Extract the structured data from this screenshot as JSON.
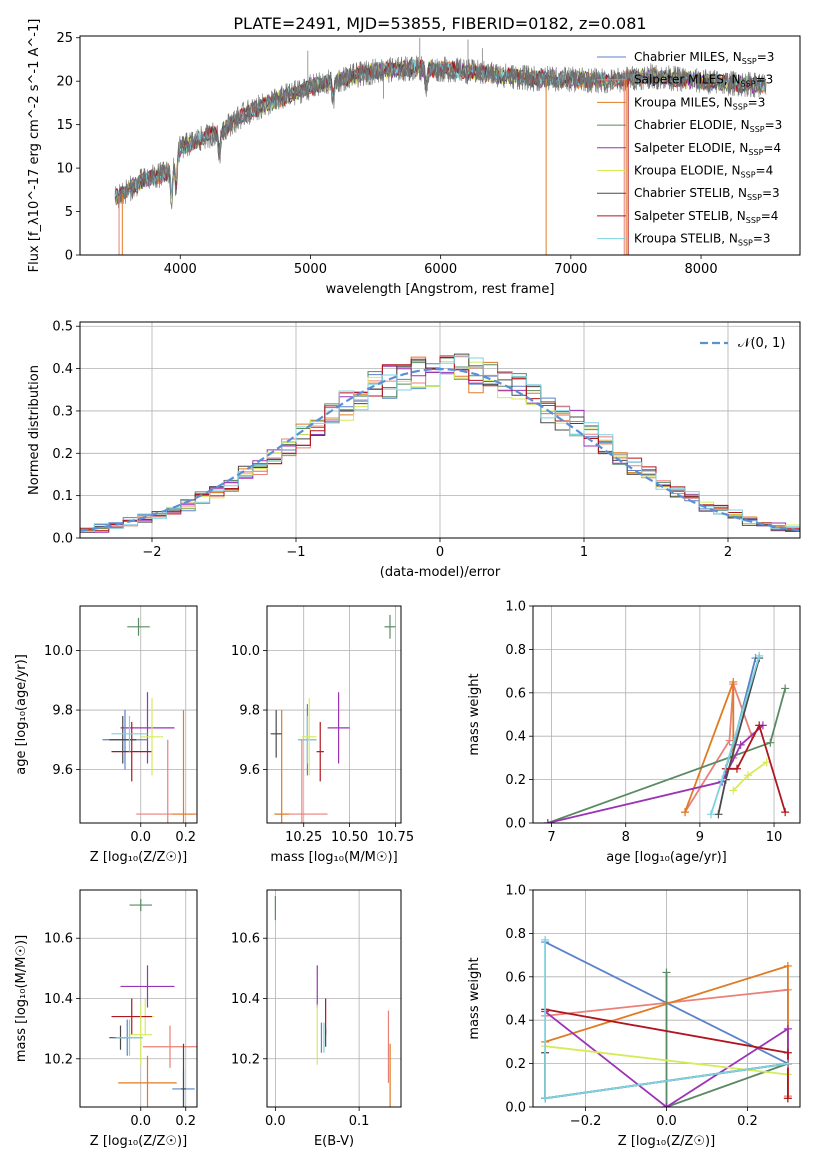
{
  "figure": {
    "title": "PLATE=2491, MJD=53855, FIBERID=0182, z=0.081"
  },
  "colors": {
    "chabrier_miles": "#5b82c7",
    "salpeter_miles": "#e9807a",
    "kroupa_miles": "#e07b24",
    "chabrier_elodie": "#5a8a63",
    "salpeter_elodie": "#9b33b5",
    "kroupa_elodie": "#d7ea5a",
    "chabrier_stelib": "#4a4a4a",
    "salpeter_stelib": "#b0161f",
    "kroupa_stelib": "#7dd3e0",
    "grid": "#b0b0b0",
    "gaussian": "#5b8fd6"
  },
  "chart_data": [
    {
      "type": "line",
      "id": "spectrum",
      "xlabel": "wavelength [Angstrom, rest frame]",
      "ylabel": "Flux [f_λ10^-17 erg cm^-2 s^-1 A^-1]",
      "xlim": [
        3230,
        8760
      ],
      "ylim": [
        0,
        25.2
      ],
      "xticks": [
        4000,
        5000,
        6000,
        7000,
        8000
      ],
      "yticks": [
        0,
        5,
        10,
        15,
        20,
        25
      ],
      "grid": false,
      "legend_position": "right",
      "legend": [
        {
          "label": "Chabrier MILES, N",
          "sub": "SSP",
          "tail": "=3",
          "color_key": "chabrier_miles"
        },
        {
          "label": "Salpeter MILES, N",
          "sub": "SSP",
          "tail": "=3",
          "color_key": "salpeter_miles"
        },
        {
          "label": "Kroupa MILES, N",
          "sub": "SSP",
          "tail": "=3",
          "color_key": "kroupa_miles"
        },
        {
          "label": "Chabrier ELODIE, N",
          "sub": "SSP",
          "tail": "=3",
          "color_key": "chabrier_elodie"
        },
        {
          "label": "Salpeter ELODIE, N",
          "sub": "SSP",
          "tail": "=4",
          "color_key": "salpeter_elodie"
        },
        {
          "label": "Kroupa ELODIE, N",
          "sub": "SSP",
          "tail": "=4",
          "color_key": "kroupa_elodie"
        },
        {
          "label": "Chabrier STELIB, N",
          "sub": "SSP",
          "tail": "=3",
          "color_key": "chabrier_stelib"
        },
        {
          "label": "Salpeter STELIB, N",
          "sub": "SSP",
          "tail": "=4",
          "color_key": "salpeter_stelib"
        },
        {
          "label": "Kroupa STELIB, N",
          "sub": "SSP",
          "tail": "=3",
          "color_key": "kroupa_stelib"
        }
      ],
      "continuum": {
        "x": [
          3500,
          3700,
          3900,
          4000,
          4100,
          4300,
          4500,
          4800,
          5000,
          5200,
          5500,
          5800,
          6100,
          6400,
          6700,
          7000,
          7300,
          7600,
          8000,
          8200,
          8500
        ],
        "y": [
          6.5,
          8.5,
          9.5,
          12.3,
          13.0,
          14.2,
          16.3,
          18.2,
          19.3,
          20.1,
          21.2,
          21.5,
          21.3,
          20.8,
          20.3,
          20.2,
          20.0,
          20.6,
          20.0,
          19.8,
          19.5
        ]
      },
      "model_range": [
        3500,
        8500
      ],
      "dips": [
        {
          "x": 3934,
          "depth": 4.0
        },
        {
          "x": 3968,
          "depth": 3.5
        },
        {
          "x": 4300,
          "depth": 2.5
        },
        {
          "x": 5175,
          "depth": 2.0
        },
        {
          "x": 5890,
          "depth": 2.0
        }
      ],
      "spikes": [
        {
          "x": 5840,
          "y": 25.0
        },
        {
          "x": 6210,
          "y": 24.8
        },
        {
          "x": 4980,
          "y": 23.5
        },
        {
          "x": 6320,
          "y": 23.8
        },
        {
          "x": 5560,
          "y": 18.0
        }
      ],
      "drop_lines": [
        {
          "x": 3530,
          "color_key": "salpeter_miles"
        },
        {
          "x": 3555,
          "color_key": "kroupa_miles"
        },
        {
          "x": 6810,
          "color_key": "kroupa_miles"
        },
        {
          "x": 7410,
          "color_key": "salpeter_miles"
        },
        {
          "x": 7425,
          "color_key": "kroupa_miles"
        },
        {
          "x": 7440,
          "color_key": "salpeter_stelib"
        }
      ]
    },
    {
      "type": "line",
      "id": "residual_hist",
      "xlabel": "(data-model)/error",
      "ylabel": "Normed distribution",
      "xlim": [
        -2.5,
        2.5
      ],
      "ylim": [
        0,
        0.51
      ],
      "xticks": [
        -2,
        -1,
        0,
        1,
        2
      ],
      "yticks": [
        0.0,
        0.1,
        0.2,
        0.3,
        0.4,
        0.5
      ],
      "grid": true,
      "legend_position": "upper right",
      "legend": [
        {
          "label": "𝒩(0, 1)",
          "color_key": "gaussian"
        }
      ],
      "bin_width": 0.1,
      "bin_start": -2.5,
      "series_order": [
        "chabrier_miles",
        "salpeter_miles",
        "kroupa_miles",
        "chabrier_elodie",
        "salpeter_elodie",
        "kroupa_elodie",
        "chabrier_stelib",
        "salpeter_stelib",
        "kroupa_stelib"
      ]
    },
    {
      "type": "scatter",
      "id": "age_vs_Z",
      "xlabel": "Z [log₁₀(Z/Z☉)]",
      "ylabel": "age  [log₁₀(age/yr)]",
      "xlim": [
        -0.27,
        0.25
      ],
      "ylim": [
        9.42,
        10.15
      ],
      "xticks": [
        0.0,
        0.2
      ],
      "xticklabels": [
        "0.0",
        "0.2"
      ],
      "yticks": [
        9.6,
        9.8,
        10.0
      ],
      "yticklabels": [
        "9.6",
        "9.8",
        "10.0"
      ],
      "grid": true,
      "points": [
        {
          "x": -0.01,
          "y": 10.08,
          "xerr": 0.05,
          "yerr": 0.03,
          "color_key": "chabrier_elodie"
        },
        {
          "x": 0.03,
          "y": 9.74,
          "xerr": 0.12,
          "yerr": 0.12,
          "color_key": "salpeter_elodie"
        },
        {
          "x": -0.07,
          "y": 9.7,
          "xerr": 0.1,
          "yerr": 0.1,
          "color_key": "chabrier_miles"
        },
        {
          "x": -0.04,
          "y": 9.66,
          "xerr": 0.09,
          "yerr": 0.1,
          "color_key": "salpeter_stelib"
        },
        {
          "x": -0.08,
          "y": 9.7,
          "xerr": 0.06,
          "yerr": 0.08,
          "color_key": "chabrier_stelib"
        },
        {
          "x": -0.05,
          "y": 9.72,
          "xerr": 0.08,
          "yerr": 0.06,
          "color_key": "kroupa_stelib"
        },
        {
          "x": 0.05,
          "y": 9.71,
          "xerr": 0.05,
          "yerr": 0.13,
          "color_key": "kroupa_elodie"
        },
        {
          "x": 0.12,
          "y": 9.45,
          "xerr": 0.14,
          "yerr": 0.25,
          "color_key": "salpeter_miles"
        },
        {
          "x": 0.19,
          "y": 9.45,
          "xerr": 0.05,
          "yerr": 0.35,
          "color_key": "kroupa_miles"
        }
      ]
    },
    {
      "type": "scatter",
      "id": "age_vs_mass",
      "xlabel": "mass [log₁₀(M/M☉)]",
      "ylabel": "",
      "xlim": [
        10.05,
        10.78
      ],
      "ylim": [
        9.42,
        10.15
      ],
      "xticks": [
        10.25,
        10.5,
        10.75
      ],
      "xticklabels": [
        "10.25",
        "10.50",
        "10.75"
      ],
      "yticks": [
        9.6,
        9.8,
        10.0
      ],
      "yticklabels": [
        "9.6",
        "9.8",
        "10.0"
      ],
      "grid": true,
      "points": [
        {
          "x": 10.72,
          "y": 10.08,
          "xerr": 0.03,
          "yerr": 0.04,
          "color_key": "chabrier_elodie"
        },
        {
          "x": 10.44,
          "y": 9.74,
          "xerr": 0.06,
          "yerr": 0.12,
          "color_key": "salpeter_elodie"
        },
        {
          "x": 10.27,
          "y": 9.7,
          "xerr": 0.05,
          "yerr": 0.12,
          "color_key": "chabrier_miles"
        },
        {
          "x": 10.34,
          "y": 9.66,
          "xerr": 0.02,
          "yerr": 0.1,
          "color_key": "salpeter_stelib"
        },
        {
          "x": 10.27,
          "y": 9.7,
          "xerr": 0.05,
          "yerr": 0.08,
          "color_key": "kroupa_stelib"
        },
        {
          "x": 10.28,
          "y": 9.71,
          "xerr": 0.04,
          "yerr": 0.13,
          "color_key": "kroupa_elodie"
        },
        {
          "x": 10.24,
          "y": 9.45,
          "xerr": 0.14,
          "yerr": 0.25,
          "color_key": "salpeter_miles"
        },
        {
          "x": 10.13,
          "y": 9.45,
          "xerr": 0.04,
          "yerr": 0.35,
          "color_key": "kroupa_miles"
        },
        {
          "x": 10.1,
          "y": 9.72,
          "xerr": 0.03,
          "yerr": 0.08,
          "color_key": "chabrier_stelib"
        }
      ]
    },
    {
      "type": "line",
      "id": "massweight_vs_age",
      "xlabel": "age  [log₁₀(age/yr)]",
      "ylabel": "mass weight",
      "xlim": [
        6.75,
        10.35
      ],
      "ylim": [
        0,
        1
      ],
      "xticks": [
        7,
        8,
        9,
        10
      ],
      "yticks": [
        0.0,
        0.2,
        0.4,
        0.6,
        0.8,
        1.0
      ],
      "grid": true,
      "series": [
        {
          "color_key": "chabrier_miles",
          "x": [
            9.3,
            9.45,
            9.75
          ],
          "y": [
            0.2,
            0.36,
            0.76
          ]
        },
        {
          "color_key": "salpeter_miles",
          "x": [
            8.8,
            9.4,
            9.45,
            9.7
          ],
          "y": [
            0.05,
            0.38,
            0.64,
            0.4
          ]
        },
        {
          "color_key": "kroupa_miles",
          "x": [
            8.8,
            9.45,
            9.45
          ],
          "y": [
            0.05,
            0.65,
            0.3
          ]
        },
        {
          "color_key": "chabrier_elodie",
          "x": [
            6.95,
            9.95,
            10.15
          ],
          "y": [
            0.0,
            0.37,
            0.62
          ]
        },
        {
          "color_key": "salpeter_elodie",
          "x": [
            6.95,
            9.3,
            9.55,
            9.85
          ],
          "y": [
            0.0,
            0.19,
            0.36,
            0.45
          ]
        },
        {
          "color_key": "kroupa_elodie",
          "x": [
            9.45,
            9.65,
            9.9
          ],
          "y": [
            0.15,
            0.22,
            0.28
          ]
        },
        {
          "color_key": "chabrier_stelib",
          "x": [
            9.25,
            9.35,
            9.8
          ],
          "y": [
            0.04,
            0.2,
            0.76
          ]
        },
        {
          "color_key": "salpeter_stelib",
          "x": [
            9.35,
            9.5,
            9.8,
            10.15
          ],
          "y": [
            0.25,
            0.25,
            0.45,
            0.05
          ]
        },
        {
          "color_key": "kroupa_stelib",
          "x": [
            9.15,
            9.3,
            9.8
          ],
          "y": [
            0.04,
            0.2,
            0.77
          ]
        }
      ]
    },
    {
      "type": "scatter",
      "id": "mass_vs_Z",
      "xlabel": "Z [log₁₀(Z/Z☉)]",
      "ylabel": "mass [log₁₀(M/M☉)]",
      "xlim": [
        -0.27,
        0.25
      ],
      "ylim": [
        10.04,
        10.76
      ],
      "xticks": [
        0.0,
        0.2
      ],
      "xticklabels": [
        "0.0",
        "0.2"
      ],
      "yticks": [
        10.2,
        10.4,
        10.6
      ],
      "yticklabels": [
        "10.2",
        "10.4",
        "10.6"
      ],
      "grid": true,
      "points": [
        {
          "x": 0.0,
          "y": 10.71,
          "xerr": 0.05,
          "yerr": 0.02,
          "color_key": "chabrier_elodie"
        },
        {
          "x": 0.03,
          "y": 10.44,
          "xerr": 0.12,
          "yerr": 0.07,
          "color_key": "salpeter_elodie"
        },
        {
          "x": 0.02,
          "y": 10.34,
          "xerr": 0.04,
          "yerr": 0.06,
          "color_key": "kroupa_elodie"
        },
        {
          "x": -0.04,
          "y": 10.34,
          "xerr": 0.09,
          "yerr": 0.06,
          "color_key": "salpeter_stelib"
        },
        {
          "x": 0.0,
          "y": 10.28,
          "xerr": 0.05,
          "yerr": 0.1,
          "color_key": "kroupa_elodie"
        },
        {
          "x": -0.09,
          "y": 10.27,
          "xerr": 0.05,
          "yerr": 0.04,
          "color_key": "chabrier_stelib"
        },
        {
          "x": -0.06,
          "y": 10.27,
          "xerr": 0.06,
          "yerr": 0.06,
          "color_key": "chabrier_miles"
        },
        {
          "x": -0.05,
          "y": 10.27,
          "xerr": 0.06,
          "yerr": 0.06,
          "color_key": "kroupa_stelib"
        },
        {
          "x": 0.13,
          "y": 10.24,
          "xerr": 0.12,
          "yerr": 0.07,
          "color_key": "salpeter_miles"
        },
        {
          "x": 0.03,
          "y": 10.12,
          "xerr": 0.13,
          "yerr": 0.09,
          "color_key": "kroupa_miles"
        },
        {
          "x": 0.19,
          "y": 10.1,
          "xerr": 0.05,
          "yerr": 0.06,
          "color_key": "chabrier_miles"
        },
        {
          "x": 0.19,
          "y": 10.1,
          "xerr": 0.01,
          "yerr": 0.15,
          "color_key": "chabrier_stelib"
        }
      ]
    },
    {
      "type": "scatter",
      "id": "mass_vs_ebv",
      "xlabel": "E(B-V)",
      "ylabel": "",
      "xlim": [
        -0.01,
        0.15
      ],
      "ylim": [
        10.04,
        10.76
      ],
      "xticks": [
        0.0,
        0.1
      ],
      "xticklabels": [
        "0.0",
        "0.1"
      ],
      "yticks": [
        10.2,
        10.4,
        10.6
      ],
      "yticklabels": [
        "10.2",
        "10.4",
        "10.6"
      ],
      "grid": true,
      "points": [
        {
          "x": 0.0,
          "y": 10.7,
          "xerr": 0,
          "yerr": 0.04,
          "color_key": "chabrier_elodie"
        },
        {
          "x": 0.05,
          "y": 10.44,
          "xerr": 0,
          "yerr": 0.07,
          "color_key": "salpeter_elodie"
        },
        {
          "x": 0.06,
          "y": 10.34,
          "xerr": 0,
          "yerr": 0.06,
          "color_key": "salpeter_stelib"
        },
        {
          "x": 0.05,
          "y": 10.28,
          "xerr": 0,
          "yerr": 0.1,
          "color_key": "kroupa_elodie"
        },
        {
          "x": 0.055,
          "y": 10.27,
          "xerr": 0,
          "yerr": 0.05,
          "color_key": "chabrier_miles"
        },
        {
          "x": 0.058,
          "y": 10.27,
          "xerr": 0,
          "yerr": 0.05,
          "color_key": "kroupa_stelib"
        },
        {
          "x": 0.135,
          "y": 10.24,
          "xerr": 0,
          "yerr": 0.12,
          "color_key": "salpeter_miles"
        },
        {
          "x": 0.137,
          "y": 10.13,
          "xerr": 0,
          "yerr": 0.12,
          "color_key": "kroupa_miles"
        },
        {
          "x": 0.06,
          "y": 10.27,
          "xerr": 0,
          "yerr": 0.03,
          "color_key": "chabrier_stelib"
        }
      ]
    },
    {
      "type": "line",
      "id": "massweight_vs_Z",
      "xlabel": "Z [log₁₀(Z/Z☉)]",
      "ylabel": "mass weight",
      "xlim": [
        -0.33,
        0.33
      ],
      "ylim": [
        0,
        1
      ],
      "xticks": [
        -0.2,
        0.0,
        0.2
      ],
      "xticklabels": [
        "−0.2",
        "0.0",
        "0.2"
      ],
      "yticks": [
        0.0,
        0.2,
        0.4,
        0.6,
        0.8,
        1.0
      ],
      "grid": true,
      "series": [
        {
          "color_key": "chabrier_miles",
          "x": [
            -0.3,
            0.3,
            -0.3
          ],
          "y": [
            0.04,
            0.2,
            0.76
          ]
        },
        {
          "color_key": "salpeter_miles",
          "x": [
            -0.3,
            0.3,
            0.3
          ],
          "y": [
            0.42,
            0.54,
            0.05
          ]
        },
        {
          "color_key": "kroupa_miles",
          "x": [
            -0.3,
            0.3,
            0.3
          ],
          "y": [
            0.3,
            0.65,
            0.04
          ]
        },
        {
          "color_key": "chabrier_elodie",
          "x": [
            0.0,
            0.0,
            0.3
          ],
          "y": [
            0.62,
            0.0,
            0.2
          ]
        },
        {
          "color_key": "salpeter_elodie",
          "x": [
            -0.3,
            0.0,
            0.3,
            0.3
          ],
          "y": [
            0.44,
            0.0,
            0.36,
            0.2
          ]
        },
        {
          "color_key": "kroupa_elodie",
          "x": [
            -0.3,
            0.3
          ],
          "y": [
            0.28,
            0.15
          ]
        },
        {
          "color_key": "chabrier_stelib",
          "x": [
            -0.3,
            -0.3,
            0.3
          ],
          "y": [
            0.25,
            0.04,
            0.2
          ]
        },
        {
          "color_key": "salpeter_stelib",
          "x": [
            -0.3,
            0.3,
            0.3
          ],
          "y": [
            0.45,
            0.25,
            0.04
          ]
        },
        {
          "color_key": "kroupa_stelib",
          "x": [
            -0.3,
            -0.3,
            0.3
          ],
          "y": [
            0.77,
            0.04,
            0.2
          ]
        }
      ]
    }
  ]
}
